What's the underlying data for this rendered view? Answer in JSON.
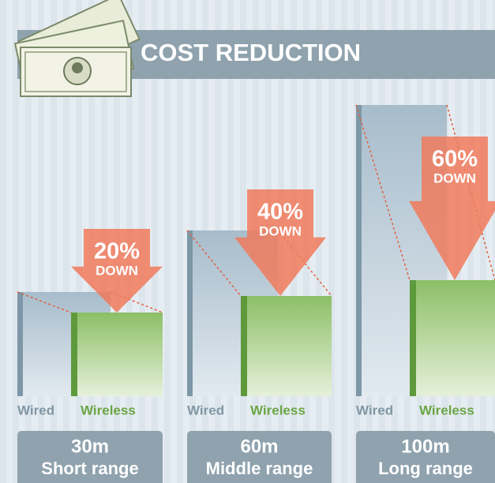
{
  "header": {
    "title": "COST REDUCTION"
  },
  "panels": [
    {
      "percent": "20%",
      "down": "DOWN",
      "wired": "Wired",
      "wireless": "Wireless",
      "distance": "30m",
      "range": "Short range"
    },
    {
      "percent": "40%",
      "down": "DOWN",
      "wired": "Wired",
      "wireless": "Wireless",
      "distance": "60m",
      "range": "Middle range"
    },
    {
      "percent": "60%",
      "down": "DOWN",
      "wired": "Wired",
      "wireless": "Wireless",
      "distance": "100m",
      "range": "Long range"
    }
  ]
}
